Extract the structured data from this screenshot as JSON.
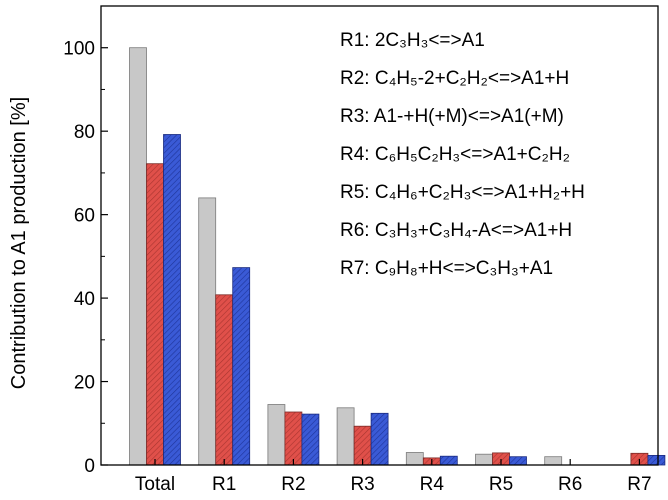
{
  "chart_data": {
    "type": "bar",
    "categories": [
      "Total",
      "R1",
      "R2",
      "R3",
      "R4",
      "R5",
      "R6",
      "R7"
    ],
    "series": [
      {
        "values": [
          100,
          64,
          14.5,
          13.7,
          3.0,
          2.6,
          2.0,
          0
        ],
        "color": "#c8c8c8",
        "pattern": "solid"
      },
      {
        "values": [
          72.2,
          40.8,
          12.7,
          9.3,
          1.7,
          2.9,
          0,
          2.8
        ],
        "color": "#e0504a",
        "pattern": "hatch"
      },
      {
        "values": [
          79.2,
          47.3,
          12.2,
          12.4,
          2.1,
          2.0,
          0,
          2.3
        ],
        "color": "#3a5ad6",
        "pattern": "hatch"
      }
    ],
    "ylabel": "Contribution to A1 production [%]",
    "xlabel": "",
    "ylim": [
      0,
      110
    ],
    "yticks": [
      "0",
      "20",
      "40",
      "60",
      "80",
      "100"
    ],
    "grid": false,
    "annotations": [
      {
        "id": "R1",
        "text": "R1: 2C₃H₃<=>A1"
      },
      {
        "id": "R2",
        "text": "R2: C₄H₅-2+C₂H₂<=>A1+H"
      },
      {
        "id": "R3",
        "text": "R3: A1-+H(+M)<=>A1(+M)"
      },
      {
        "id": "R4",
        "text": "R4: C₆H₅C₂H₃<=>A1+C₂H₂"
      },
      {
        "id": "R5",
        "text": "R5: C₄H₆+C₂H₃<=>A1+H₂+H"
      },
      {
        "id": "R6",
        "text": "R6: C₃H₃+C₃H₄-A<=>A1+H"
      },
      {
        "id": "R7",
        "text": "R7: C₉H₈+H<=>C₃H₃+A1"
      }
    ]
  }
}
